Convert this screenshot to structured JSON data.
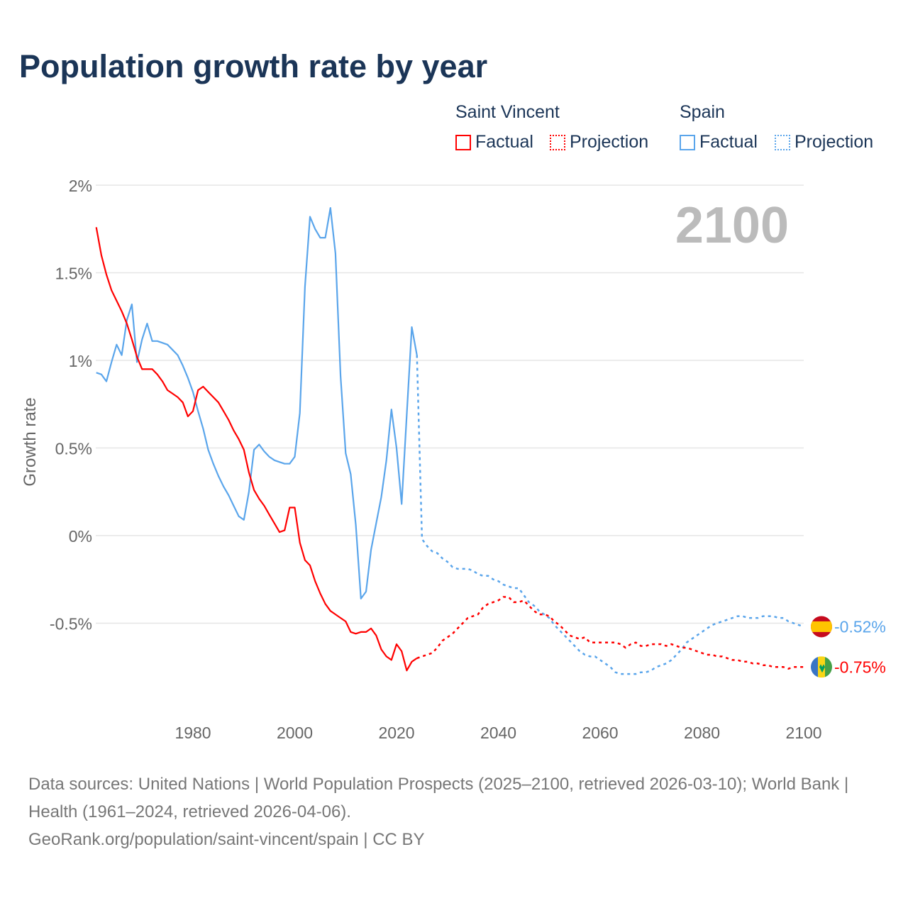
{
  "title": "Population growth rate by year",
  "legend": {
    "groups": [
      {
        "name": "Saint Vincent",
        "factual": "Factual",
        "projection": "Projection",
        "color": "#ff0000"
      },
      {
        "name": "Spain",
        "factual": "Factual",
        "projection": "Projection",
        "color": "#5aa5eb"
      }
    ]
  },
  "year_label": "2100",
  "footer": {
    "sources": "Data sources: United Nations | World Population Prospects (2025–2100, retrieved 2026-03-10); World Bank | Health (1961–2024, retrieved 2026-04-06).",
    "link": "GeoRank.org/population/saint-vincent/spain | CC BY"
  },
  "chart_data": {
    "type": "line",
    "title": "Population growth rate by year",
    "ylabel": "Growth rate",
    "xlabel": "",
    "xlim": [
      1961,
      2100
    ],
    "ylim": [
      -1,
      2
    ],
    "x_ticks": [
      "1980",
      "2000",
      "2020",
      "2040",
      "2060",
      "2080",
      "2100"
    ],
    "y_ticks": [
      {
        "v": 2,
        "label": "2%"
      },
      {
        "v": 1.5,
        "label": "1.5%"
      },
      {
        "v": 1,
        "label": "1%"
      },
      {
        "v": 0.5,
        "label": "0.5%"
      },
      {
        "v": 0,
        "label": "0%"
      },
      {
        "v": -0.5,
        "label": "-0.5%"
      }
    ],
    "grid": true,
    "series": [
      {
        "name": "Spain",
        "color": "#5aa5eb",
        "end_label": "-0.52%",
        "factual_start": 1961,
        "factual": [
          0.93,
          0.92,
          0.88,
          0.99,
          1.09,
          1.03,
          1.23,
          1.32,
          0.99,
          1.12,
          1.21,
          1.11,
          1.11,
          1.1,
          1.09,
          1.06,
          1.03,
          0.97,
          0.9,
          0.82,
          0.71,
          0.61,
          0.49,
          0.41,
          0.34,
          0.28,
          0.23,
          0.17,
          0.11,
          0.09,
          0.25,
          0.49,
          0.52,
          0.48,
          0.45,
          0.43,
          0.42,
          0.41,
          0.41,
          0.45,
          0.7,
          1.42,
          1.82,
          1.75,
          1.7,
          1.7,
          1.87,
          1.61,
          0.91,
          0.47,
          0.35,
          0.06,
          -0.36,
          -0.32,
          -0.08,
          0.07,
          0.22,
          0.43,
          0.72,
          0.5,
          0.18,
          0.69,
          1.19,
          1.03
        ],
        "projection_start": 2025,
        "projection": [
          -0.02,
          -0.06,
          -0.09,
          -0.1,
          -0.13,
          -0.15,
          -0.18,
          -0.19,
          -0.19,
          -0.19,
          -0.2,
          -0.22,
          -0.23,
          -0.23,
          -0.25,
          -0.26,
          -0.28,
          -0.29,
          -0.3,
          -0.3,
          -0.34,
          -0.38,
          -0.4,
          -0.43,
          -0.45,
          -0.47,
          -0.51,
          -0.54,
          -0.57,
          -0.6,
          -0.63,
          -0.66,
          -0.68,
          -0.69,
          -0.69,
          -0.71,
          -0.73,
          -0.75,
          -0.78,
          -0.79,
          -0.79,
          -0.79,
          -0.79,
          -0.78,
          -0.78,
          -0.77,
          -0.75,
          -0.74,
          -0.73,
          -0.71,
          -0.68,
          -0.65,
          -0.61,
          -0.59,
          -0.57,
          -0.55,
          -0.53,
          -0.51,
          -0.5,
          -0.49,
          -0.48,
          -0.47,
          -0.46,
          -0.46,
          -0.47,
          -0.47,
          -0.47,
          -0.46,
          -0.46,
          -0.46,
          -0.47,
          -0.47,
          -0.49,
          -0.5,
          -0.51,
          -0.52
        ]
      },
      {
        "name": "Saint Vincent",
        "color": "#ff0000",
        "end_label": "-0.75%",
        "factual_start": 1961,
        "factual": [
          1.76,
          1.6,
          1.49,
          1.4,
          1.34,
          1.28,
          1.21,
          1.12,
          1.02,
          0.95,
          0.95,
          0.95,
          0.92,
          0.88,
          0.83,
          0.81,
          0.79,
          0.76,
          0.68,
          0.71,
          0.83,
          0.85,
          0.82,
          0.79,
          0.76,
          0.71,
          0.66,
          0.6,
          0.55,
          0.49,
          0.36,
          0.26,
          0.21,
          0.17,
          0.12,
          0.07,
          0.02,
          0.03,
          0.16,
          0.16,
          -0.04,
          -0.14,
          -0.17,
          -0.26,
          -0.33,
          -0.39,
          -0.43,
          -0.45,
          -0.47,
          -0.49,
          -0.55,
          -0.56,
          -0.55,
          -0.55,
          -0.53,
          -0.57,
          -0.65,
          -0.69,
          -0.71,
          -0.62,
          -0.66,
          -0.77,
          -0.72,
          -0.7
        ],
        "projection_start": 2025,
        "projection": [
          -0.69,
          -0.68,
          -0.67,
          -0.64,
          -0.6,
          -0.58,
          -0.56,
          -0.53,
          -0.5,
          -0.47,
          -0.46,
          -0.45,
          -0.41,
          -0.39,
          -0.38,
          -0.37,
          -0.35,
          -0.35,
          -0.38,
          -0.38,
          -0.37,
          -0.4,
          -0.43,
          -0.45,
          -0.45,
          -0.46,
          -0.49,
          -0.51,
          -0.54,
          -0.57,
          -0.58,
          -0.59,
          -0.58,
          -0.61,
          -0.61,
          -0.61,
          -0.61,
          -0.61,
          -0.61,
          -0.62,
          -0.64,
          -0.62,
          -0.61,
          -0.63,
          -0.63,
          -0.62,
          -0.62,
          -0.62,
          -0.63,
          -0.62,
          -0.63,
          -0.64,
          -0.64,
          -0.65,
          -0.66,
          -0.67,
          -0.68,
          -0.68,
          -0.69,
          -0.69,
          -0.7,
          -0.71,
          -0.71,
          -0.72,
          -0.72,
          -0.73,
          -0.73,
          -0.74,
          -0.74,
          -0.75,
          -0.75,
          -0.75,
          -0.76,
          -0.75,
          -0.75,
          -0.75
        ]
      }
    ]
  }
}
